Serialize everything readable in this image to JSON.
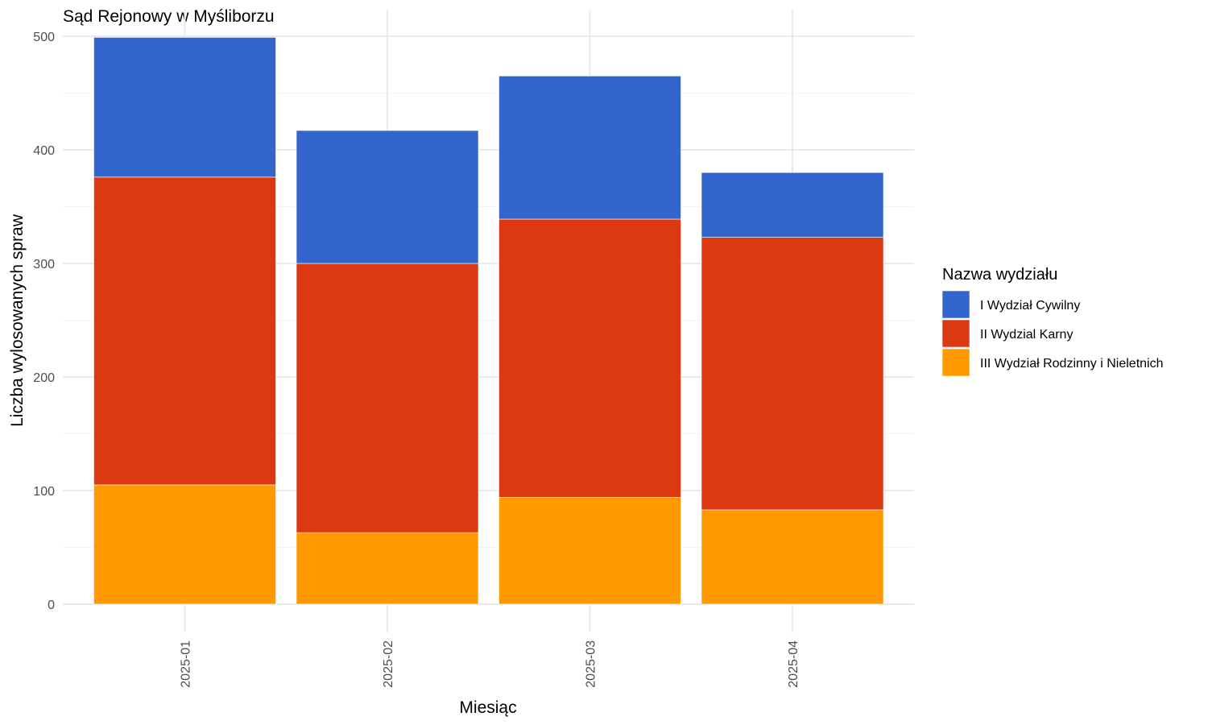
{
  "chart_data": {
    "type": "bar",
    "stacked": true,
    "title": "Sąd Rejonowy w Myśliborzu",
    "xlabel": "Miesiąc",
    "ylabel": "Liczba wylosowanych spraw",
    "categories": [
      "2025-01",
      "2025-02",
      "2025-03",
      "2025-04"
    ],
    "ylim": [
      0,
      500
    ],
    "yticks": [
      0,
      100,
      200,
      300,
      400,
      500
    ],
    "grid": true,
    "legend": {
      "title": "Nazwa wydziału",
      "placement": "right"
    },
    "series": [
      {
        "name": "III Wydział Rodzinny i Nieletnich",
        "color": "#FF9900",
        "values": [
          105,
          63,
          94,
          83
        ]
      },
      {
        "name": "II Wydzial Karny",
        "color": "#DC3912",
        "values": [
          271,
          237,
          245,
          240
        ]
      },
      {
        "name": "I Wydział Cywilny",
        "color": "#3366CC",
        "values": [
          123,
          117,
          126,
          57
        ]
      }
    ],
    "legend_order": [
      2,
      1,
      0
    ]
  }
}
